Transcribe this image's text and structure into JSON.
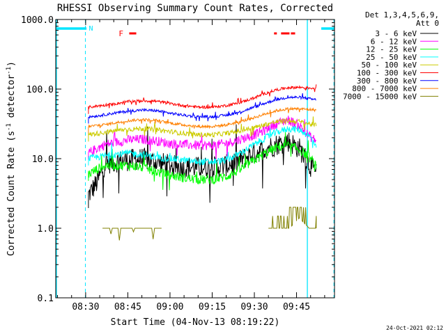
{
  "chart_data": {
    "type": "line",
    "title": "RHESSI Observing Summary Count Rates, Corrected",
    "xlabel": "Start Time (04-Nov-13 08:19:22)",
    "ylabel": "Corrected Count Rate (s⁻¹ detector⁻¹)",
    "ylabel_main": "Corrected Count Rate (s",
    "ylabel_sup1": "-1",
    "ylabel_mid": " detector",
    "ylabel_sup2": "-1",
    "ylabel_end": ")",
    "yscale": "log",
    "ylim": [
      0.1,
      1000
    ],
    "xlim": [
      "08:19:22",
      "09:58:30"
    ],
    "xlim_min": [
      499.37,
      598.5
    ],
    "x_ticks": [
      {
        "label": "08:30",
        "min": 510
      },
      {
        "label": "08:45",
        "min": 525
      },
      {
        "label": "09:00",
        "min": 540
      },
      {
        "label": "09:15",
        "min": 555
      },
      {
        "label": "09:30",
        "min": 570
      },
      {
        "label": "09:45",
        "min": 585
      }
    ],
    "y_ticks": [
      {
        "label": "0.1",
        "value": 0.1
      },
      {
        "label": "1.0",
        "value": 1
      },
      {
        "label": "10.0",
        "value": 10
      },
      {
        "label": "100.0",
        "value": 100
      },
      {
        "label": "1000.0",
        "value": 1000
      }
    ],
    "legend_position": "right",
    "legend_header": [
      "Det 1,3,4,5,6,9,",
      "Att 0"
    ],
    "annotations": {
      "night_label": "N",
      "flare_label": "F",
      "timestamp": "24-Oct-2021 02:12"
    },
    "night_segments_min": [
      [
        499.37,
        510.3
      ],
      [
        593.8,
        598.5
      ]
    ],
    "dashed_lines_min": [
      509.9,
      598.3
    ],
    "solid_lines_min": [
      499.37,
      588.6
    ],
    "flare_segments_min": [
      [
        525.5,
        528.0
      ],
      [
        577.0,
        578.0
      ],
      [
        579.5,
        582.5
      ],
      [
        583.0,
        584.5
      ]
    ],
    "data_start_min": 511.0,
    "data_end_min": 592.0,
    "series": [
      {
        "name": "3 - 6 keV",
        "color": "#000000",
        "points": [
          [
            511,
            3.0
          ],
          [
            514,
            4.5
          ],
          [
            517,
            8.5
          ],
          [
            520,
            9.0
          ],
          [
            525,
            9.5
          ],
          [
            530,
            10.0
          ],
          [
            535,
            9.0
          ],
          [
            540,
            8.0
          ],
          [
            545,
            7.5
          ],
          [
            550,
            7.5
          ],
          [
            555,
            7.5
          ],
          [
            560,
            8.0
          ],
          [
            565,
            9.5
          ],
          [
            570,
            12.0
          ],
          [
            574,
            14.0
          ],
          [
            578,
            16.0
          ],
          [
            582,
            18.0
          ],
          [
            586,
            14.0
          ],
          [
            589,
            9.0
          ],
          [
            592,
            6.0
          ]
        ]
      },
      {
        "name": "6 - 12 keV",
        "color": "#ff00ff",
        "points": [
          [
            511,
            12.0
          ],
          [
            514,
            14.0
          ],
          [
            517,
            16.0
          ],
          [
            520,
            17.0
          ],
          [
            525,
            18.5
          ],
          [
            530,
            19.0
          ],
          [
            535,
            18.0
          ],
          [
            540,
            16.5
          ],
          [
            545,
            16.0
          ],
          [
            550,
            15.5
          ],
          [
            555,
            15.5
          ],
          [
            560,
            16.5
          ],
          [
            565,
            19.0
          ],
          [
            570,
            22.0
          ],
          [
            574,
            26.0
          ],
          [
            578,
            32.0
          ],
          [
            582,
            36.0
          ],
          [
            586,
            30.0
          ],
          [
            589,
            22.0
          ],
          [
            592,
            18.0
          ]
        ]
      },
      {
        "name": "12 - 25 keV",
        "color": "#00ff00",
        "points": [
          [
            511,
            6.0
          ],
          [
            514,
            7.0
          ],
          [
            517,
            8.0
          ],
          [
            520,
            8.0
          ],
          [
            525,
            8.0
          ],
          [
            530,
            7.5
          ],
          [
            535,
            6.5
          ],
          [
            540,
            5.8
          ],
          [
            545,
            5.3
          ],
          [
            550,
            5.0
          ],
          [
            555,
            5.0
          ],
          [
            560,
            5.5
          ],
          [
            565,
            7.0
          ],
          [
            570,
            9.5
          ],
          [
            574,
            12.0
          ],
          [
            578,
            14.5
          ],
          [
            582,
            15.5
          ],
          [
            586,
            13.5
          ],
          [
            589,
            11.0
          ],
          [
            592,
            8.0
          ]
        ]
      },
      {
        "name": "25 - 50 keV",
        "color": "#00ffff",
        "points": [
          [
            511,
            10.0
          ],
          [
            514,
            10.5
          ],
          [
            517,
            11.0
          ],
          [
            520,
            11.5
          ],
          [
            525,
            12.0
          ],
          [
            530,
            11.5
          ],
          [
            535,
            10.5
          ],
          [
            540,
            10.0
          ],
          [
            545,
            9.5
          ],
          [
            550,
            9.0
          ],
          [
            555,
            9.0
          ],
          [
            560,
            9.5
          ],
          [
            565,
            12.0
          ],
          [
            570,
            16.0
          ],
          [
            574,
            20.0
          ],
          [
            578,
            24.0
          ],
          [
            582,
            27.0
          ],
          [
            586,
            26.0
          ],
          [
            589,
            22.0
          ],
          [
            592,
            16.0
          ]
        ]
      },
      {
        "name": "50 - 100 keV",
        "color": "#cccc00",
        "points": [
          [
            511,
            22.0
          ],
          [
            514,
            23.0
          ],
          [
            517,
            24.0
          ],
          [
            520,
            25.0
          ],
          [
            525,
            26.5
          ],
          [
            530,
            27.0
          ],
          [
            535,
            26.0
          ],
          [
            540,
            24.5
          ],
          [
            545,
            23.0
          ],
          [
            550,
            22.0
          ],
          [
            555,
            22.0
          ],
          [
            560,
            23.0
          ],
          [
            565,
            25.0
          ],
          [
            570,
            28.0
          ],
          [
            574,
            31.0
          ],
          [
            578,
            34.0
          ],
          [
            582,
            35.0
          ],
          [
            586,
            34.0
          ],
          [
            589,
            32.0
          ],
          [
            592,
            30.0
          ]
        ]
      },
      {
        "name": "100 - 300 keV",
        "color": "#ff0000",
        "points": [
          [
            511,
            55.0
          ],
          [
            514,
            57.0
          ],
          [
            517,
            59.0
          ],
          [
            520,
            61.0
          ],
          [
            525,
            66.0
          ],
          [
            530,
            68.0
          ],
          [
            535,
            67.0
          ],
          [
            540,
            62.0
          ],
          [
            545,
            58.0
          ],
          [
            550,
            55.0
          ],
          [
            555,
            55.0
          ],
          [
            560,
            58.0
          ],
          [
            565,
            64.0
          ],
          [
            570,
            75.0
          ],
          [
            574,
            87.0
          ],
          [
            578,
            98.0
          ],
          [
            582,
            105.0
          ],
          [
            586,
            106.0
          ],
          [
            589,
            104.0
          ],
          [
            592,
            103.0
          ]
        ]
      },
      {
        "name": "300 - 800 keV",
        "color": "#0000ff",
        "points": [
          [
            511,
            40.0
          ],
          [
            514,
            41.0
          ],
          [
            517,
            43.0
          ],
          [
            520,
            45.0
          ],
          [
            525,
            48.0
          ],
          [
            530,
            50.0
          ],
          [
            535,
            49.0
          ],
          [
            540,
            45.0
          ],
          [
            545,
            42.0
          ],
          [
            550,
            40.0
          ],
          [
            555,
            40.0
          ],
          [
            560,
            42.0
          ],
          [
            565,
            47.0
          ],
          [
            570,
            55.0
          ],
          [
            574,
            63.0
          ],
          [
            578,
            71.0
          ],
          [
            582,
            76.0
          ],
          [
            586,
            76.0
          ],
          [
            589,
            73.0
          ],
          [
            592,
            70.0
          ]
        ]
      },
      {
        "name": "800 - 7000 keV",
        "color": "#ff8000",
        "points": [
          [
            511,
            29.0
          ],
          [
            514,
            30.0
          ],
          [
            517,
            31.0
          ],
          [
            520,
            32.5
          ],
          [
            525,
            35.0
          ],
          [
            530,
            36.5
          ],
          [
            535,
            35.5
          ],
          [
            540,
            32.5
          ],
          [
            545,
            30.5
          ],
          [
            550,
            29.0
          ],
          [
            555,
            29.0
          ],
          [
            560,
            30.5
          ],
          [
            565,
            34.0
          ],
          [
            570,
            39.0
          ],
          [
            574,
            44.0
          ],
          [
            578,
            49.0
          ],
          [
            582,
            52.0
          ],
          [
            586,
            52.0
          ],
          [
            589,
            51.0
          ],
          [
            592,
            50.0
          ]
        ]
      },
      {
        "name": "7000 - 15000 keV",
        "color": "#808000",
        "points": [
          [
            516,
            1.0
          ],
          [
            520,
            1.0
          ],
          [
            525,
            1.0
          ],
          [
            530,
            1.0
          ],
          [
            535,
            1.0
          ],
          [
            537,
            1.0
          ],
          [
            575,
            1.0
          ],
          [
            580,
            1.0
          ],
          [
            583,
            1.5
          ],
          [
            586,
            2.0
          ],
          [
            589,
            1.5
          ],
          [
            592,
            1.0
          ]
        ]
      }
    ]
  }
}
